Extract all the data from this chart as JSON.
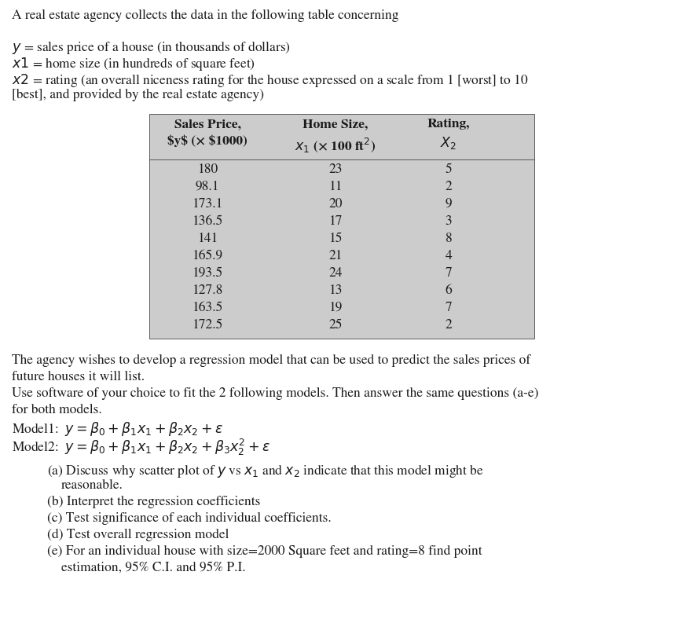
{
  "title_line": "A real estate agency collects the data in the following table concerning",
  "table_data": [
    [
      "180",
      "23",
      "5"
    ],
    [
      "98.1",
      "11",
      "2"
    ],
    [
      "173.1",
      "20",
      "9"
    ],
    [
      "136.5",
      "17",
      "3"
    ],
    [
      "141",
      "15",
      "8"
    ],
    [
      "165.9",
      "21",
      "4"
    ],
    [
      "193.5",
      "24",
      "7"
    ],
    [
      "127.8",
      "13",
      "6"
    ],
    [
      "163.5",
      "19",
      "7"
    ],
    [
      "172.5",
      "25",
      "2"
    ]
  ],
  "bg_color": "#ffffff",
  "table_bg": "#cccccc",
  "text_color": "#1a1a1a",
  "font_size_body": 12.5,
  "font_size_table": 12.5,
  "font_family": "STIXGeneral"
}
